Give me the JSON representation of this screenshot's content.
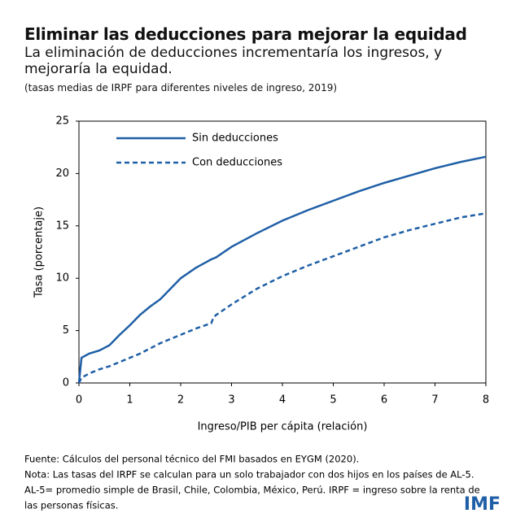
{
  "header": {
    "title": "Eliminar las deducciones para mejorar la equidad",
    "subtitle": "La eliminación de deducciones incrementaría los ingresos, y mejoraría la equidad.",
    "note": "(tasas medias de IRPF para diferentes niveles de ingreso, 2019)"
  },
  "chart_data": {
    "type": "line",
    "x_label": "Ingreso/PIB per cápita (relación)",
    "y_label": "Tasa (porcentaje)",
    "x": [
      0,
      0.05,
      0.2,
      0.4,
      0.6,
      0.8,
      1,
      1.2,
      1.4,
      1.6,
      1.8,
      2,
      2.3,
      2.6,
      2.65,
      2.7,
      3,
      3.5,
      4,
      4.5,
      5,
      5.5,
      6,
      6.5,
      7,
      7.5,
      8
    ],
    "series": [
      {
        "name": "Sin deducciones",
        "color": "#1f5fa6",
        "style": "solid",
        "values": [
          0,
          2.4,
          2.8,
          3.1,
          3.6,
          4.6,
          5.5,
          6.5,
          7.3,
          8,
          9,
          10,
          11,
          11.8,
          11.9,
          12,
          13,
          14.3,
          15.5,
          16.5,
          17.4,
          18.3,
          19.1,
          19.8,
          20.5,
          21.1,
          21.6
        ]
      },
      {
        "name": "Con deducciones",
        "color": "#1f5fa6",
        "style": "dashed",
        "values": [
          0,
          0.5,
          0.9,
          1.3,
          1.6,
          2.0,
          2.4,
          2.8,
          3.3,
          3.8,
          4.2,
          4.6,
          5.2,
          5.7,
          6.3,
          6.5,
          7.5,
          9.0,
          10.2,
          11.2,
          12.1,
          13.0,
          13.9,
          14.6,
          15.2,
          15.8,
          16.2
        ]
      }
    ],
    "xlim": [
      0,
      8
    ],
    "xticks": [
      0,
      1,
      2,
      3,
      4,
      5,
      6,
      7,
      8
    ],
    "ylim": [
      0,
      25
    ],
    "yticks": [
      0,
      5,
      10,
      15,
      20,
      25
    ],
    "legend": "upper left"
  },
  "footer": {
    "lines": [
      "Fuente: Cálculos del personal técnico del FMI basados en EYGM (2020).",
      "Nota: Las tasas del IRPF se calculan para  un solo trabajador con dos hijos en los países de AL-5.",
      "AL-5= promedio simple de Brasil, Chile, Colombia, México, Perú. IRPF = ingreso sobre la renta de",
      "las personas físicas."
    ],
    "logo": "IMF"
  }
}
